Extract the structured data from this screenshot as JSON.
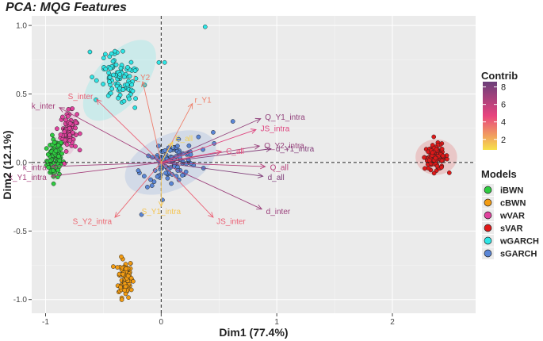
{
  "chart_data": {
    "type": "scatter",
    "title": "PCA: MQG Features",
    "xlabel": "Dim1 (77.4%)",
    "ylabel": "Dim2 (12.1%)",
    "xlim": [
      -1.12,
      2.72
    ],
    "ylim": [
      -1.1,
      1.07
    ],
    "x_ticks": [
      -1,
      0,
      1,
      2
    ],
    "y_ticks": [
      -1.0,
      -0.5,
      0.0,
      0.5,
      1.0
    ],
    "x_tick_labels": [
      "-1",
      "0",
      "1",
      "2"
    ],
    "y_tick_labels": [
      "-1.0",
      "-0.5",
      "0.0",
      "0.5",
      "1.0"
    ],
    "grid": true,
    "reference_lines": {
      "x": 0,
      "y": 0
    },
    "series": [
      {
        "name": "iBWN",
        "color": "#2ecc40",
        "center": [
          -0.92,
          0.03
        ],
        "sd": [
          0.035,
          0.07
        ],
        "corr": 0.1,
        "n": 90,
        "ellipse": true,
        "ellipse_radii": [
          0.06,
          0.16
        ],
        "ellipse_angle": 0
      },
      {
        "name": "cBWN",
        "color": "#f39c12",
        "center": [
          -0.31,
          -0.84
        ],
        "sd": [
          0.03,
          0.07
        ],
        "corr": 0.0,
        "n": 100,
        "ellipse": false
      },
      {
        "name": "wVAR",
        "color": "#e0439e",
        "center": [
          -0.8,
          0.23
        ],
        "sd": [
          0.035,
          0.07
        ],
        "corr": 0.0,
        "n": 80,
        "ellipse": true,
        "ellipse_radii": [
          0.07,
          0.17
        ],
        "ellipse_angle": 0
      },
      {
        "name": "sVAR",
        "color": "#e01818",
        "center": [
          2.38,
          0.04
        ],
        "sd": [
          0.05,
          0.045
        ],
        "corr": 0.0,
        "n": 110,
        "ellipse": true,
        "ellipse_radii": [
          0.18,
          0.13
        ],
        "ellipse_angle": 0
      },
      {
        "name": "wGARCH",
        "color": "#2ee6e6",
        "center": [
          -0.36,
          0.6
        ],
        "sd": [
          0.09,
          0.1
        ],
        "corr": -0.4,
        "n": 100,
        "ellipse": true,
        "ellipse_radii": [
          0.42,
          0.18
        ],
        "ellipse_angle": 50
      },
      {
        "name": "sGARCH",
        "color": "#5a86d6",
        "center": [
          0.08,
          0.0
        ],
        "sd": [
          0.12,
          0.07
        ],
        "corr": 0.4,
        "n": 110,
        "ellipse": true,
        "ellipse_radii": [
          0.42,
          0.2
        ],
        "ellipse_angle": 25
      }
    ],
    "outliers": [
      {
        "series": "wGARCH",
        "x": 0.38,
        "y": 0.99
      },
      {
        "series": "wGARCH",
        "x": -0.02,
        "y": 0.73
      },
      {
        "series": "wGARCH",
        "x": 0.03,
        "y": 0.73
      },
      {
        "series": "sGARCH",
        "x": 0.62,
        "y": 0.3
      },
      {
        "series": "sGARCH",
        "x": 0.45,
        "y": 0.22
      },
      {
        "series": "sGARCH",
        "x": -0.17,
        "y": -0.38
      }
    ],
    "variables": [
      {
        "label": "k_inter",
        "x": -0.88,
        "y": 0.4,
        "contrib": 6.8
      },
      {
        "label": "k_Y1_intra",
        "x": -0.95,
        "y": -0.1,
        "contrib": 6.8
      },
      {
        "label": "k_intra",
        "x": -0.95,
        "y": -0.03,
        "contrib": 6.9
      },
      {
        "label": "S_inter",
        "x": -0.56,
        "y": 0.46,
        "contrib": 4.0
      },
      {
        "label": "r_Y2",
        "x": -0.16,
        "y": 0.59,
        "contrib": 3.3
      },
      {
        "label": "r_Y1",
        "x": 0.27,
        "y": 0.43,
        "contrib": 3.2
      },
      {
        "label": "JS_intra",
        "x": 0.82,
        "y": 0.24,
        "contrib": 5.0
      },
      {
        "label": "Q_Y1_intra",
        "x": 0.86,
        "y": 0.32,
        "contrib": 7.4
      },
      {
        "label": "Q_Y2_intra",
        "x": 0.85,
        "y": 0.12,
        "contrib": 7.2
      },
      {
        "label": "d_Y1_intra",
        "x": 0.95,
        "y": 0.1,
        "contrib": 7.8
      },
      {
        "label": "d_all",
        "x": 0.88,
        "y": -0.1,
        "contrib": 7.9
      },
      {
        "label": "Q_all",
        "x": 0.9,
        "y": -0.03,
        "contrib": 6.2
      },
      {
        "label": "d_inter",
        "x": 0.87,
        "y": -0.34,
        "contrib": 7.1
      },
      {
        "label": "JS_inter",
        "x": 0.45,
        "y": -0.4,
        "contrib": 4.0
      },
      {
        "label": "S_Y2_intra",
        "x": -0.4,
        "y": -0.4,
        "contrib": 3.8
      },
      {
        "label": "S_Y1_intra",
        "x": 0.0,
        "y": -0.32,
        "contrib": 1.5
      },
      {
        "label": "C_all",
        "x": 0.52,
        "y": 0.08,
        "contrib": 4.5
      },
      {
        "label": "E_all",
        "x": 0.1,
        "y": 0.15,
        "contrib": 1.2
      }
    ],
    "contrib_scale": {
      "min": 0.8,
      "max": 8.6,
      "ticks": [
        2,
        4,
        6,
        8
      ],
      "colors": [
        "#f7e14a",
        "#e8447e",
        "#6b3f7a"
      ]
    },
    "legend": {
      "contrib_title": "Contrib",
      "models_title": "Models",
      "position": "right"
    }
  }
}
